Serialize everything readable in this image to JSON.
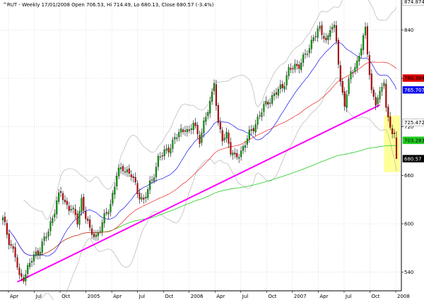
{
  "chart_data": {
    "type": "candlestick",
    "title": "^RUT - Weekly 17/01/2008 Open 706.53, Hi 714.49, Lo 680.13, Close 680.57 (-3.4%)",
    "ylim": [
      517,
      877
    ],
    "y_ticks": [
      540,
      600,
      660,
      720,
      780,
      840
    ],
    "x_tick_labels": [
      "Apr",
      "Jul",
      "Oct",
      "2005",
      "Apr",
      "Jul",
      "Oct",
      "2006",
      "Apr",
      "Jul",
      "Oct",
      "2007",
      "Apr",
      "Jul",
      "Oct",
      "2008"
    ],
    "grid": true,
    "price_tags": [
      {
        "label": "874.874",
        "value": 874.874,
        "bg": "#ffffff",
        "fg": "#000000"
      },
      {
        "label": "780.384",
        "value": 780.384,
        "bg": "#dd0000",
        "fg": "#000000"
      },
      {
        "label": "765.707",
        "value": 765.707,
        "bg": "#1111ee",
        "fg": "#ffffff"
      },
      {
        "label": "725.472",
        "value": 725.472,
        "bg": "#ffffff",
        "fg": "#000000"
      },
      {
        "label": "703.283",
        "value": 703.283,
        "bg": "#22cc22",
        "fg": "#000000"
      },
      {
        "label": "680.57",
        "value": 680.57,
        "bg": "#000000",
        "fg": "#ffffff"
      }
    ],
    "series": [
      {
        "name": "MA-20",
        "color": "#1111ee",
        "role": "ma20"
      },
      {
        "name": "MA-50",
        "color": "#ee2222",
        "role": "ma50"
      },
      {
        "name": "MA-200",
        "color": "#22cc22",
        "role": "ma200"
      },
      {
        "name": "Bollinger",
        "color": "#aaaaaa",
        "role": "bollinger"
      }
    ],
    "trendline": {
      "color": "#ff00ff",
      "from_index": 7,
      "from_value": 528,
      "to_index": 182,
      "to_value": 747
    },
    "highlight": {
      "color": "#ffff99",
      "from_index": 185,
      "to_index": 190
    },
    "anchors": [
      [
        0,
        605
      ],
      [
        3,
        580
      ],
      [
        6,
        560
      ],
      [
        8,
        532
      ],
      [
        10,
        535
      ],
      [
        14,
        555
      ],
      [
        18,
        570
      ],
      [
        22,
        590
      ],
      [
        26,
        628
      ],
      [
        28,
        638
      ],
      [
        30,
        625
      ],
      [
        33,
        620
      ],
      [
        36,
        602
      ],
      [
        38,
        630
      ],
      [
        42,
        590
      ],
      [
        45,
        585
      ],
      [
        48,
        600
      ],
      [
        52,
        625
      ],
      [
        55,
        660
      ],
      [
        58,
        670
      ],
      [
        62,
        660
      ],
      [
        65,
        640
      ],
      [
        68,
        628
      ],
      [
        72,
        655
      ],
      [
        75,
        680
      ],
      [
        78,
        688
      ],
      [
        82,
        700
      ],
      [
        85,
        712
      ],
      [
        88,
        720
      ],
      [
        90,
        710
      ],
      [
        92,
        726
      ],
      [
        95,
        705
      ],
      [
        98,
        730
      ],
      [
        101,
        762
      ],
      [
        102,
        778
      ],
      [
        104,
        720
      ],
      [
        106,
        705
      ],
      [
        108,
        712
      ],
      [
        110,
        690
      ],
      [
        112,
        680
      ],
      [
        115,
        690
      ],
      [
        118,
        705
      ],
      [
        120,
        715
      ],
      [
        124,
        735
      ],
      [
        128,
        752
      ],
      [
        132,
        762
      ],
      [
        135,
        770
      ],
      [
        138,
        790
      ],
      [
        142,
        795
      ],
      [
        145,
        805
      ],
      [
        148,
        815
      ],
      [
        150,
        835
      ],
      [
        153,
        840
      ],
      [
        156,
        825
      ],
      [
        158,
        845
      ],
      [
        160,
        840
      ],
      [
        161,
        825
      ],
      [
        163,
        775
      ],
      [
        165,
        750
      ],
      [
        168,
        785
      ],
      [
        171,
        800
      ],
      [
        173,
        820
      ],
      [
        175,
        838
      ],
      [
        176,
        812
      ],
      [
        178,
        765
      ],
      [
        180,
        750
      ],
      [
        182,
        758
      ],
      [
        184,
        780
      ],
      [
        185,
        745
      ],
      [
        186,
        730
      ],
      [
        188,
        712
      ],
      [
        189,
        706
      ],
      [
        190,
        680.57
      ]
    ]
  }
}
